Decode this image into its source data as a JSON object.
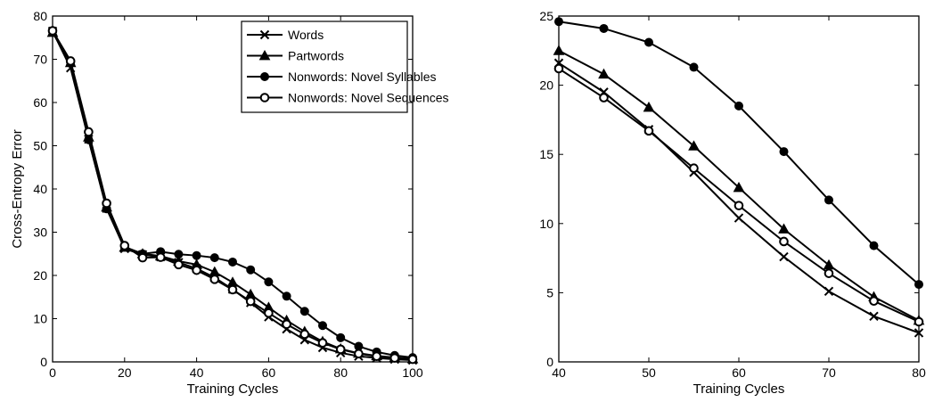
{
  "chart_data": [
    {
      "type": "line",
      "xlabel": "Training Cycles",
      "ylabel": "Cross-Entropy Error",
      "xlim": [
        0,
        100
      ],
      "ylim": [
        0,
        80
      ],
      "xticks": [
        "0",
        "20",
        "40",
        "60",
        "80",
        "100"
      ],
      "yticks": [
        "0",
        "10",
        "20",
        "30",
        "40",
        "50",
        "60",
        "70",
        "80"
      ],
      "legend": "top-right",
      "grid": false,
      "x": [
        0,
        5,
        10,
        15,
        20,
        25,
        30,
        35,
        40,
        45,
        50,
        55,
        60,
        65,
        70,
        75,
        80,
        85,
        90,
        95,
        100
      ],
      "series": [
        {
          "name": "Words",
          "marker": "x",
          "values": [
            76.5,
            68,
            51.5,
            35.5,
            26.2,
            24.8,
            24.3,
            23.0,
            21.6,
            19.5,
            16.8,
            13.7,
            10.4,
            7.6,
            5.1,
            3.3,
            2.1,
            1.3,
            0.9,
            0.6,
            0.4
          ]
        },
        {
          "name": "Partwords",
          "marker": "triangle",
          "values": [
            76.2,
            69.2,
            52.0,
            35.8,
            26.5,
            25.0,
            24.5,
            23.3,
            22.5,
            20.8,
            18.4,
            15.6,
            12.6,
            9.6,
            7.0,
            4.7,
            3.0,
            2.0,
            1.4,
            1.0,
            0.7
          ]
        },
        {
          "name": "Nonwords: Novel Syllables",
          "marker": "circle-filled",
          "values": [
            76.4,
            69.3,
            51.4,
            35.4,
            26.6,
            25.0,
            25.5,
            24.9,
            24.6,
            24.1,
            23.1,
            21.3,
            18.5,
            15.2,
            11.7,
            8.4,
            5.6,
            3.6,
            2.3,
            1.5,
            1.0
          ]
        },
        {
          "name": "Nonwords: Novel Sequences",
          "marker": "circle-open",
          "values": [
            76.6,
            69.6,
            53.2,
            36.7,
            26.9,
            24.1,
            24.2,
            22.5,
            21.2,
            19.1,
            16.7,
            14.0,
            11.3,
            8.7,
            6.4,
            4.4,
            2.9,
            1.9,
            1.3,
            0.9,
            0.6
          ]
        }
      ]
    },
    {
      "type": "line",
      "xlabel": "Training Cycles",
      "ylabel": "",
      "xlim": [
        40,
        80
      ],
      "ylim": [
        0,
        25
      ],
      "xticks": [
        "40",
        "50",
        "60",
        "70",
        "80"
      ],
      "yticks": [
        "0",
        "5",
        "10",
        "15",
        "20",
        "25"
      ],
      "grid": false,
      "x": [
        40,
        45,
        50,
        55,
        60,
        65,
        70,
        75,
        80
      ],
      "series": [
        {
          "name": "Words",
          "marker": "x",
          "values": [
            21.6,
            19.5,
            16.8,
            13.7,
            10.4,
            7.6,
            5.1,
            3.3,
            2.1
          ]
        },
        {
          "name": "Partwords",
          "marker": "triangle",
          "values": [
            22.5,
            20.8,
            18.4,
            15.6,
            12.6,
            9.6,
            7.0,
            4.7,
            3.0
          ]
        },
        {
          "name": "Nonwords: Novel Syllables",
          "marker": "circle-filled",
          "values": [
            24.6,
            24.1,
            23.1,
            21.3,
            18.5,
            15.2,
            11.7,
            8.4,
            5.6
          ]
        },
        {
          "name": "Nonwords: Novel Sequences",
          "marker": "circle-open",
          "values": [
            21.2,
            19.1,
            16.7,
            14.0,
            11.3,
            8.7,
            6.4,
            4.4,
            2.9
          ]
        }
      ]
    }
  ]
}
